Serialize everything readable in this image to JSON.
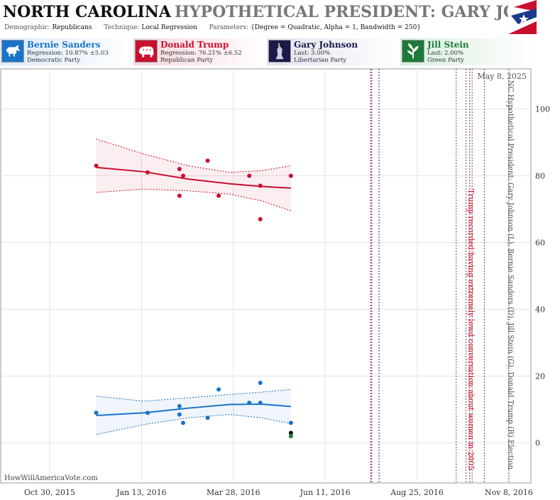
{
  "header": {
    "state": "NORTH CAROLINA",
    "subtitle": "HYPOTHETICAL PRESIDENT: GARY JOHNSON",
    "demographic_label": "Demographic:",
    "demographic_value": "Republicans",
    "technique_label": "Technique:",
    "technique_value": "Local Regression",
    "parameters_label": "Parameters:",
    "parameters_value": "{Degree = Quadratic, Alpha = 1, Bandwidth = 250}"
  },
  "candidates": [
    {
      "name": "Bernie Sanders",
      "stat": "Regression: 10.87% ±5.03",
      "party": "Democratic Party",
      "color": "#1a73c8",
      "icon": "donkey-icon"
    },
    {
      "name": "Donald Trump",
      "stat": "Regression: 76.21% ±6.52",
      "party": "Republican Party",
      "color": "#c8102e",
      "icon": "elephant-icon"
    },
    {
      "name": "Gary Johnson",
      "stat": "Last: 3.00%",
      "party": "Libertarian Party",
      "color": "#1a1a4a",
      "icon": "statue-of-liberty-icon"
    },
    {
      "name": "Jill Stein",
      "stat": "Last: 2.00%",
      "party": "Green Party",
      "color": "#1f7a3a",
      "icon": "green-leaf-icon"
    }
  ],
  "watermark": "HowWillAmericaVote.com",
  "chart_data": {
    "type": "scatter",
    "x_type": "date",
    "xlim": [
      "2015-09-20",
      "2016-11-26"
    ],
    "ylim": [
      -12,
      112
    ],
    "x_ticks": [
      "2015-10-30",
      "2016-01-13",
      "2016-03-28",
      "2016-06-11",
      "2016-08-25",
      "2016-11-08"
    ],
    "x_tick_labels": [
      "Oct 30, 2015",
      "Jan 13, 2016",
      "Mar 28, 2016",
      "Jun 11, 2016",
      "Aug 25, 2016",
      "Nov 8, 2016"
    ],
    "y_ticks": [
      0,
      20,
      40,
      60,
      80,
      100
    ],
    "grid": true,
    "date_label": "May 8, 2025",
    "vertical_title": "NC Hypothetical President: Gary Johnson (L), Bernie Sanders (D), Jill Stein (G), Donald Trump (R) Election",
    "annotation": {
      "text": "Trump recorded having extremely lewd conversation about women in 2005",
      "color": "#c8102e"
    },
    "series": [
      {
        "name": "Donald Trump",
        "color": "#c8102e",
        "points": [
          {
            "x": "2015-12-07",
            "y": 83
          },
          {
            "x": "2016-01-18",
            "y": 81
          },
          {
            "x": "2016-02-13",
            "y": 82
          },
          {
            "x": "2016-02-13",
            "y": 74
          },
          {
            "x": "2016-02-16",
            "y": 80
          },
          {
            "x": "2016-03-07",
            "y": 84.5
          },
          {
            "x": "2016-03-16",
            "y": 74
          },
          {
            "x": "2016-04-10",
            "y": 80
          },
          {
            "x": "2016-04-19",
            "y": 77
          },
          {
            "x": "2016-04-19",
            "y": 67
          },
          {
            "x": "2016-05-14",
            "y": 80
          }
        ],
        "trend": [
          {
            "x": "2015-12-07",
            "y": 82.5,
            "lo": 75,
            "hi": 91
          },
          {
            "x": "2016-01-15",
            "y": 81.2,
            "lo": 76,
            "hi": 86.5
          },
          {
            "x": "2016-02-20",
            "y": 79,
            "lo": 75.5,
            "hi": 83
          },
          {
            "x": "2016-03-25",
            "y": 77.6,
            "lo": 74.5,
            "hi": 81
          },
          {
            "x": "2016-04-20",
            "y": 76.8,
            "lo": 72.5,
            "hi": 81.5
          },
          {
            "x": "2016-05-14",
            "y": 76.3,
            "lo": 69.5,
            "hi": 83
          }
        ]
      },
      {
        "name": "Bernie Sanders",
        "color": "#1a73c8",
        "points": [
          {
            "x": "2015-12-07",
            "y": 9
          },
          {
            "x": "2016-01-18",
            "y": 9
          },
          {
            "x": "2016-02-13",
            "y": 11
          },
          {
            "x": "2016-02-13",
            "y": 8.5
          },
          {
            "x": "2016-02-16",
            "y": 6
          },
          {
            "x": "2016-03-07",
            "y": 7.5
          },
          {
            "x": "2016-03-16",
            "y": 16
          },
          {
            "x": "2016-04-10",
            "y": 12
          },
          {
            "x": "2016-04-19",
            "y": 18
          },
          {
            "x": "2016-04-19",
            "y": 12
          },
          {
            "x": "2016-05-14",
            "y": 6
          }
        ],
        "trend": [
          {
            "x": "2015-12-07",
            "y": 8.2,
            "lo": 2.5,
            "hi": 14
          },
          {
            "x": "2016-01-15",
            "y": 9,
            "lo": 5.5,
            "hi": 12.5
          },
          {
            "x": "2016-02-20",
            "y": 10.4,
            "lo": 7.5,
            "hi": 13.5
          },
          {
            "x": "2016-03-25",
            "y": 11.5,
            "lo": 8.5,
            "hi": 14.5
          },
          {
            "x": "2016-04-20",
            "y": 11.6,
            "lo": 7.5,
            "hi": 15.2
          },
          {
            "x": "2016-05-14",
            "y": 10.9,
            "lo": 5.8,
            "hi": 16
          }
        ]
      },
      {
        "name": "Gary Johnson",
        "color": "#111111",
        "points": [
          {
            "x": "2016-05-14",
            "y": 3
          }
        ]
      },
      {
        "name": "Jill Stein",
        "color": "#1f7a3a",
        "points": [
          {
            "x": "2016-05-14",
            "y": 2
          }
        ]
      }
    ],
    "event_lines": [
      {
        "x": "2016-07-18",
        "color": "#c8102e"
      },
      {
        "x": "2016-07-19",
        "color": "#1a1a8a"
      },
      {
        "x": "2016-07-25",
        "color": "#1a1a8a"
      },
      {
        "x": "2016-09-26",
        "color": "#555555"
      },
      {
        "x": "2016-10-04",
        "color": "#555555"
      },
      {
        "x": "2016-10-07",
        "color": "#c8102e"
      },
      {
        "x": "2016-10-09",
        "color": "#555555"
      },
      {
        "x": "2016-10-19",
        "color": "#555555"
      },
      {
        "x": "2016-11-08",
        "color": "#555555"
      }
    ]
  }
}
